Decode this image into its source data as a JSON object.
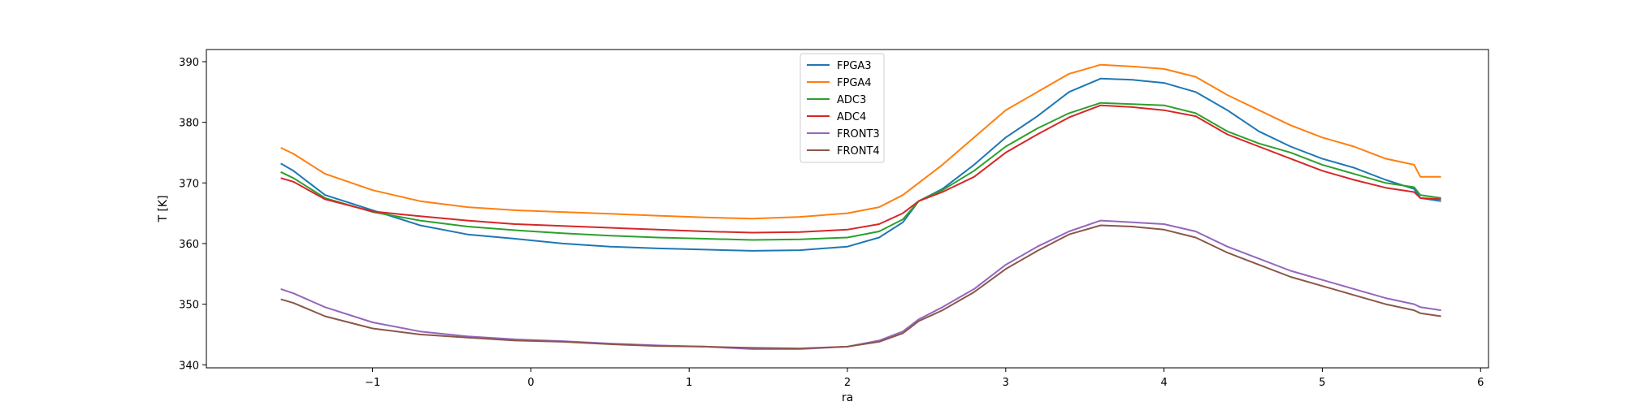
{
  "chart_data": {
    "type": "line",
    "title": "",
    "xlabel": "ra",
    "ylabel": "T [K]",
    "xlim": [
      -2.05,
      6.05
    ],
    "ylim": [
      339.5,
      392.0
    ],
    "xticks": [
      -1,
      0,
      1,
      2,
      3,
      4,
      5,
      6
    ],
    "xtick_labels": [
      "−1",
      "0",
      "1",
      "2",
      "3",
      "4",
      "5",
      "6"
    ],
    "yticks": [
      340,
      350,
      360,
      370,
      380,
      390
    ],
    "ytick_labels": [
      "340",
      "350",
      "360",
      "370",
      "380",
      "390"
    ],
    "grid": false,
    "legend_position": "top-center",
    "series": [
      {
        "name": "FPGA3",
        "color": "#1f77b4",
        "x": [
          -1.58,
          -1.5,
          -1.3,
          -1.0,
          -0.7,
          -0.4,
          -0.1,
          0.2,
          0.5,
          0.8,
          1.1,
          1.4,
          1.7,
          2.0,
          2.2,
          2.35,
          2.45,
          2.6,
          2.8,
          3.0,
          3.2,
          3.4,
          3.6,
          3.8,
          4.0,
          4.2,
          4.4,
          4.6,
          4.8,
          5.0,
          5.2,
          5.4,
          5.58,
          5.62,
          5.75
        ],
        "y": [
          373.2,
          372.0,
          368.0,
          365.5,
          363.0,
          361.5,
          360.8,
          360.0,
          359.5,
          359.2,
          359.0,
          358.8,
          358.9,
          359.5,
          361.0,
          363.5,
          367.0,
          369.0,
          373.0,
          377.5,
          381.0,
          385.0,
          387.2,
          387.0,
          386.5,
          385.0,
          382.0,
          378.5,
          376.0,
          374.0,
          372.5,
          370.5,
          369.0,
          367.5,
          367.0
        ]
      },
      {
        "name": "FPGA4",
        "color": "#ff7f0e",
        "x": [
          -1.58,
          -1.5,
          -1.3,
          -1.0,
          -0.7,
          -0.4,
          -0.1,
          0.2,
          0.5,
          0.8,
          1.1,
          1.4,
          1.7,
          2.0,
          2.2,
          2.35,
          2.45,
          2.6,
          2.8,
          3.0,
          3.2,
          3.4,
          3.6,
          3.8,
          4.0,
          4.2,
          4.4,
          4.6,
          4.8,
          5.0,
          5.2,
          5.4,
          5.58,
          5.62,
          5.75
        ],
        "y": [
          375.8,
          374.8,
          371.5,
          368.8,
          367.0,
          366.0,
          365.5,
          365.2,
          364.9,
          364.6,
          364.3,
          364.1,
          364.4,
          365.0,
          366.0,
          368.0,
          370.0,
          373.0,
          377.5,
          382.0,
          385.0,
          388.0,
          389.5,
          389.2,
          388.8,
          387.5,
          384.5,
          382.0,
          379.5,
          377.5,
          376.0,
          374.0,
          373.0,
          371.0,
          371.0
        ]
      },
      {
        "name": "ADC3",
        "color": "#2ca02c",
        "x": [
          -1.58,
          -1.5,
          -1.3,
          -1.0,
          -0.7,
          -0.4,
          -0.1,
          0.2,
          0.5,
          0.8,
          1.1,
          1.4,
          1.7,
          2.0,
          2.2,
          2.35,
          2.45,
          2.6,
          2.8,
          3.0,
          3.2,
          3.4,
          3.6,
          3.8,
          4.0,
          4.2,
          4.4,
          4.6,
          4.8,
          5.0,
          5.2,
          5.4,
          5.58,
          5.62,
          5.75
        ],
        "y": [
          371.8,
          370.8,
          367.5,
          365.2,
          363.8,
          362.8,
          362.2,
          361.7,
          361.3,
          361.0,
          360.8,
          360.6,
          360.7,
          361.0,
          362.0,
          364.0,
          367.0,
          368.8,
          372.0,
          376.0,
          379.0,
          381.5,
          383.2,
          383.0,
          382.8,
          381.5,
          378.5,
          376.5,
          375.0,
          373.0,
          371.5,
          370.0,
          369.3,
          368.0,
          367.5
        ]
      },
      {
        "name": "ADC4",
        "color": "#d62728",
        "x": [
          -1.58,
          -1.5,
          -1.3,
          -1.0,
          -0.7,
          -0.4,
          -0.1,
          0.2,
          0.5,
          0.8,
          1.1,
          1.4,
          1.7,
          2.0,
          2.2,
          2.35,
          2.45,
          2.6,
          2.8,
          3.0,
          3.2,
          3.4,
          3.6,
          3.8,
          4.0,
          4.2,
          4.4,
          4.6,
          4.8,
          5.0,
          5.2,
          5.4,
          5.58,
          5.62,
          5.75
        ],
        "y": [
          370.8,
          370.2,
          367.3,
          365.3,
          364.5,
          363.8,
          363.2,
          362.9,
          362.6,
          362.3,
          362.0,
          361.8,
          361.9,
          362.3,
          363.2,
          365.0,
          367.0,
          368.5,
          371.0,
          375.0,
          378.0,
          380.8,
          382.8,
          382.5,
          382.0,
          381.0,
          378.0,
          376.0,
          374.0,
          372.0,
          370.5,
          369.2,
          368.5,
          367.5,
          367.3
        ]
      },
      {
        "name": "FRONT3",
        "color": "#9467bd",
        "x": [
          -1.58,
          -1.5,
          -1.3,
          -1.0,
          -0.7,
          -0.4,
          -0.1,
          0.2,
          0.5,
          0.8,
          1.1,
          1.4,
          1.7,
          2.0,
          2.2,
          2.35,
          2.45,
          2.6,
          2.8,
          3.0,
          3.2,
          3.4,
          3.6,
          3.8,
          4.0,
          4.2,
          4.4,
          4.6,
          4.8,
          5.0,
          5.2,
          5.4,
          5.58,
          5.62,
          5.75
        ],
        "y": [
          352.5,
          351.8,
          349.5,
          347.0,
          345.5,
          344.7,
          344.2,
          343.9,
          343.5,
          343.2,
          343.0,
          342.6,
          342.6,
          343.0,
          344.0,
          345.5,
          347.5,
          349.5,
          352.5,
          356.5,
          359.5,
          362.0,
          363.8,
          363.5,
          363.2,
          362.0,
          359.5,
          357.5,
          355.5,
          354.0,
          352.5,
          351.0,
          350.0,
          349.5,
          349.0
        ]
      },
      {
        "name": "FRONT4",
        "color": "#8c564b",
        "x": [
          -1.58,
          -1.5,
          -1.3,
          -1.0,
          -0.7,
          -0.4,
          -0.1,
          0.2,
          0.5,
          0.8,
          1.1,
          1.4,
          1.7,
          2.0,
          2.2,
          2.35,
          2.45,
          2.6,
          2.8,
          3.0,
          3.2,
          3.4,
          3.6,
          3.8,
          4.0,
          4.2,
          4.4,
          4.6,
          4.8,
          5.0,
          5.2,
          5.4,
          5.58,
          5.62,
          5.75
        ],
        "y": [
          350.8,
          350.2,
          348.0,
          346.0,
          345.0,
          344.5,
          344.0,
          343.8,
          343.4,
          343.1,
          343.0,
          342.8,
          342.7,
          343.0,
          343.8,
          345.2,
          347.2,
          349.0,
          352.0,
          355.8,
          358.8,
          361.5,
          363.0,
          362.8,
          362.3,
          361.0,
          358.5,
          356.5,
          354.5,
          353.0,
          351.5,
          350.0,
          349.0,
          348.5,
          348.0
        ]
      }
    ]
  }
}
